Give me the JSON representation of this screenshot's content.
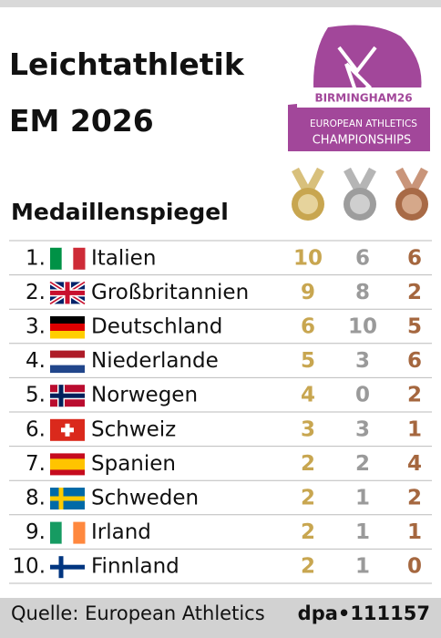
{
  "header": {
    "title": "Leichtathletik EM 2026",
    "subtitle": "Medaillenspiegel",
    "logo": {
      "line1": "BIRMINGHAM26",
      "line2": "EUROPEAN ATHLETICS",
      "line3": "CHAMPIONSHIPS"
    }
  },
  "table": {
    "rows": [
      [
        "1.",
        "Italien",
        10,
        6,
        6
      ],
      [
        "2.",
        "Großbritannien",
        9,
        8,
        2
      ],
      [
        "3.",
        "Deutschland",
        6,
        10,
        5
      ],
      [
        "4.",
        "Niederlande",
        5,
        3,
        6
      ],
      [
        "5.",
        "Norwegen",
        4,
        0,
        2
      ],
      [
        "6.",
        "Schweiz",
        3,
        3,
        1
      ],
      [
        "7.",
        "Spanien",
        2,
        2,
        4
      ],
      [
        "8.",
        "Schweden",
        2,
        1,
        2
      ],
      [
        "9.",
        "Irland",
        2,
        1,
        1
      ],
      [
        "10.",
        "Finnland",
        2,
        1,
        0
      ]
    ]
  },
  "footer": {
    "source": "Quelle: European Athletics",
    "id": "dpa•111157"
  }
}
